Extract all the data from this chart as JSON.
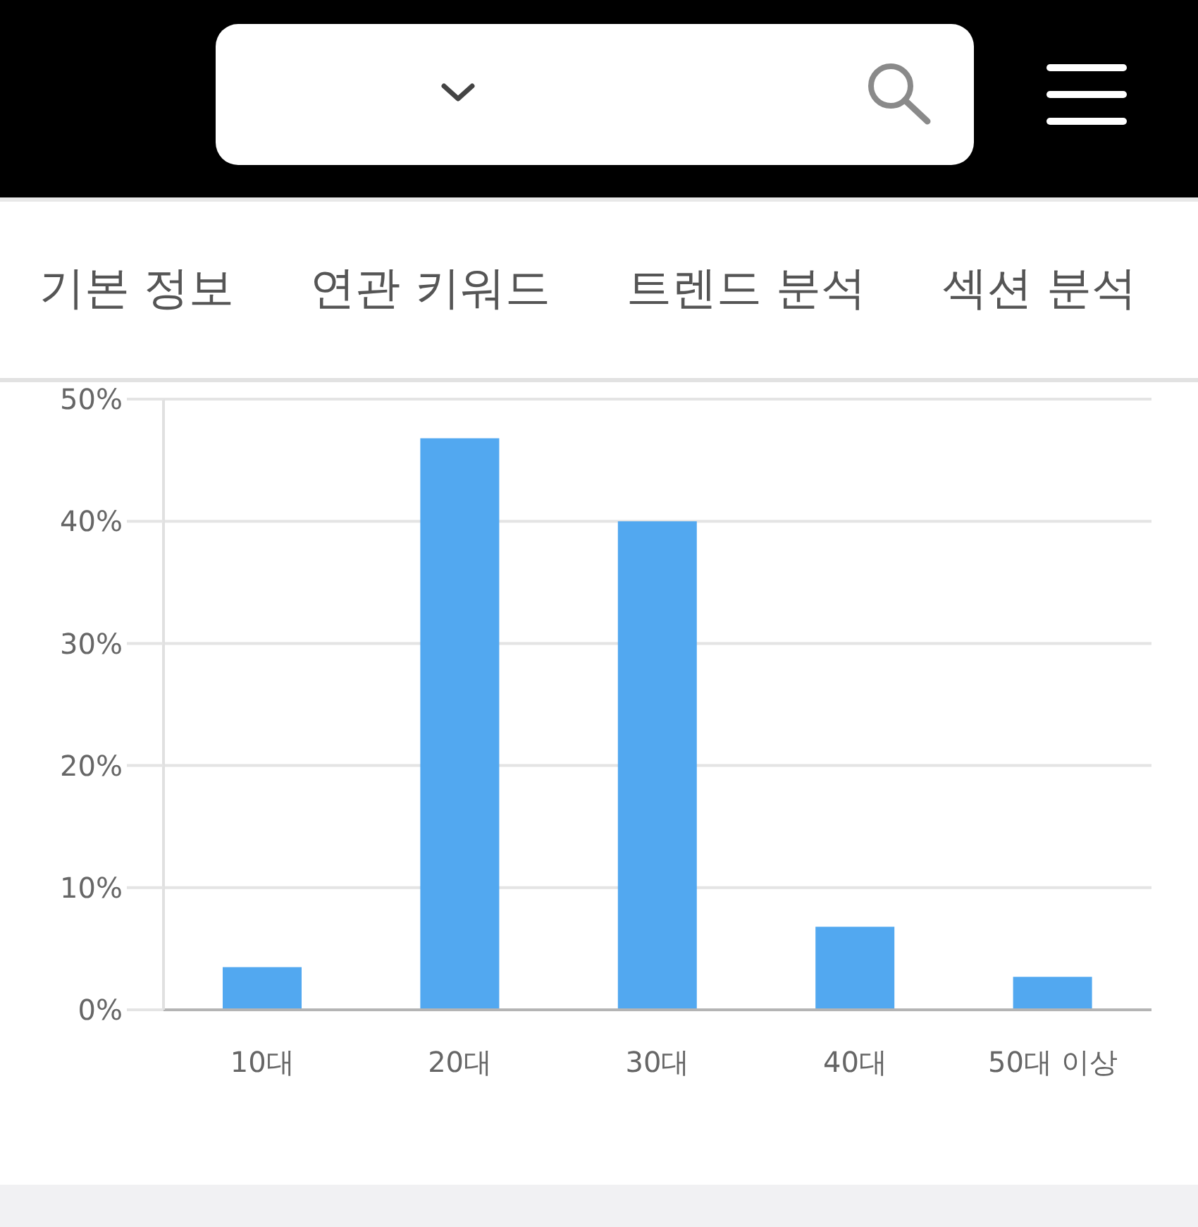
{
  "chart_data": {
    "type": "bar",
    "categories": [
      "10대",
      "20대",
      "30대",
      "40대",
      "50대 이상"
    ],
    "values": [
      3.5,
      46.8,
      40,
      6.8,
      2.7
    ],
    "color": "#52a8f0",
    "ylim": [
      0,
      50
    ],
    "yticks": [
      {
        "value": 0,
        "label": "0%"
      },
      {
        "value": 10,
        "label": "10%"
      },
      {
        "value": 20,
        "label": "20%"
      },
      {
        "value": 30,
        "label": "30%"
      },
      {
        "value": 40,
        "label": "40%"
      },
      {
        "value": 50,
        "label": "50%"
      }
    ],
    "grid": "y",
    "annotations": [
      "기본 정보",
      "연관 키워드",
      "트렌드 분석",
      "섹션 분석"
    ]
  }
}
